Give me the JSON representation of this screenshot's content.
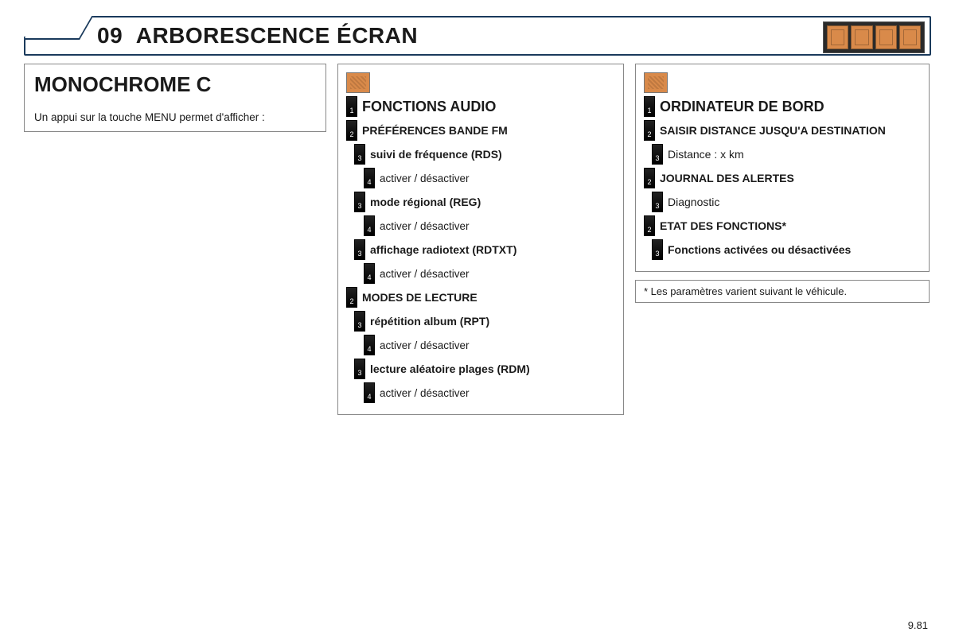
{
  "header": {
    "chapter_num": "09",
    "title": "ARBORESCENCE ÉCRAN"
  },
  "left": {
    "title": "MONOCHROME C",
    "description": "Un appui sur la touche MENU permet d'afficher :"
  },
  "mid": {
    "icon": "settings-icon",
    "items": [
      {
        "level": 1,
        "num": "1",
        "label": "FONCTIONS AUDIO"
      },
      {
        "level": 2,
        "num": "2",
        "label": "PRÉFÉRENCES BANDE FM"
      },
      {
        "level": 3,
        "num": "3",
        "label": "suivi de fréquence (RDS)"
      },
      {
        "level": 4,
        "num": "4",
        "label": "activer / désactiver"
      },
      {
        "level": 3,
        "num": "3",
        "label": "mode régional (REG)"
      },
      {
        "level": 4,
        "num": "4",
        "label": "activer / désactiver"
      },
      {
        "level": 3,
        "num": "3",
        "label": "affichage radiotext (RDTXT)"
      },
      {
        "level": 4,
        "num": "4",
        "label": "activer / désactiver"
      },
      {
        "level": 2,
        "num": "2",
        "label": "MODES DE LECTURE"
      },
      {
        "level": 3,
        "num": "3",
        "label": "répétition album (RPT)"
      },
      {
        "level": 4,
        "num": "4",
        "label": "activer / désactiver"
      },
      {
        "level": 3,
        "num": "3",
        "label": "lecture aléatoire plages (RDM)"
      },
      {
        "level": 4,
        "num": "4",
        "label": "activer / désactiver"
      }
    ]
  },
  "right": {
    "icon": "fuel-icon",
    "items": [
      {
        "level": 1,
        "num": "1",
        "label": "ORDINATEUR DE BORD"
      },
      {
        "level": 2,
        "num": "2",
        "label": "SAISIR DISTANCE JUSQU'A DESTINATION"
      },
      {
        "level": 3,
        "num": "3",
        "label": "Distance : x km",
        "light": true
      },
      {
        "level": 2,
        "num": "2",
        "label": "JOURNAL DES ALERTES"
      },
      {
        "level": 3,
        "num": "3",
        "label": "Diagnostic",
        "light": true
      },
      {
        "level": 2,
        "num": "2",
        "label": "ETAT DES FONCTIONS*"
      },
      {
        "level": 3,
        "num": "3",
        "label": "Fonctions activées ou désactivées"
      }
    ]
  },
  "footnote": "* Les paramètres varient suivant le véhicule.",
  "page_number": "9.81",
  "style": {
    "header_border": "#1a3a5c",
    "panel_border": "#888888",
    "icon_bg": "#d98a4a",
    "num_bg": "#000000",
    "title_fontsize_pt": 21,
    "h1_tree_fontsize_pt": 14,
    "body_fontsize_pt": 10
  }
}
